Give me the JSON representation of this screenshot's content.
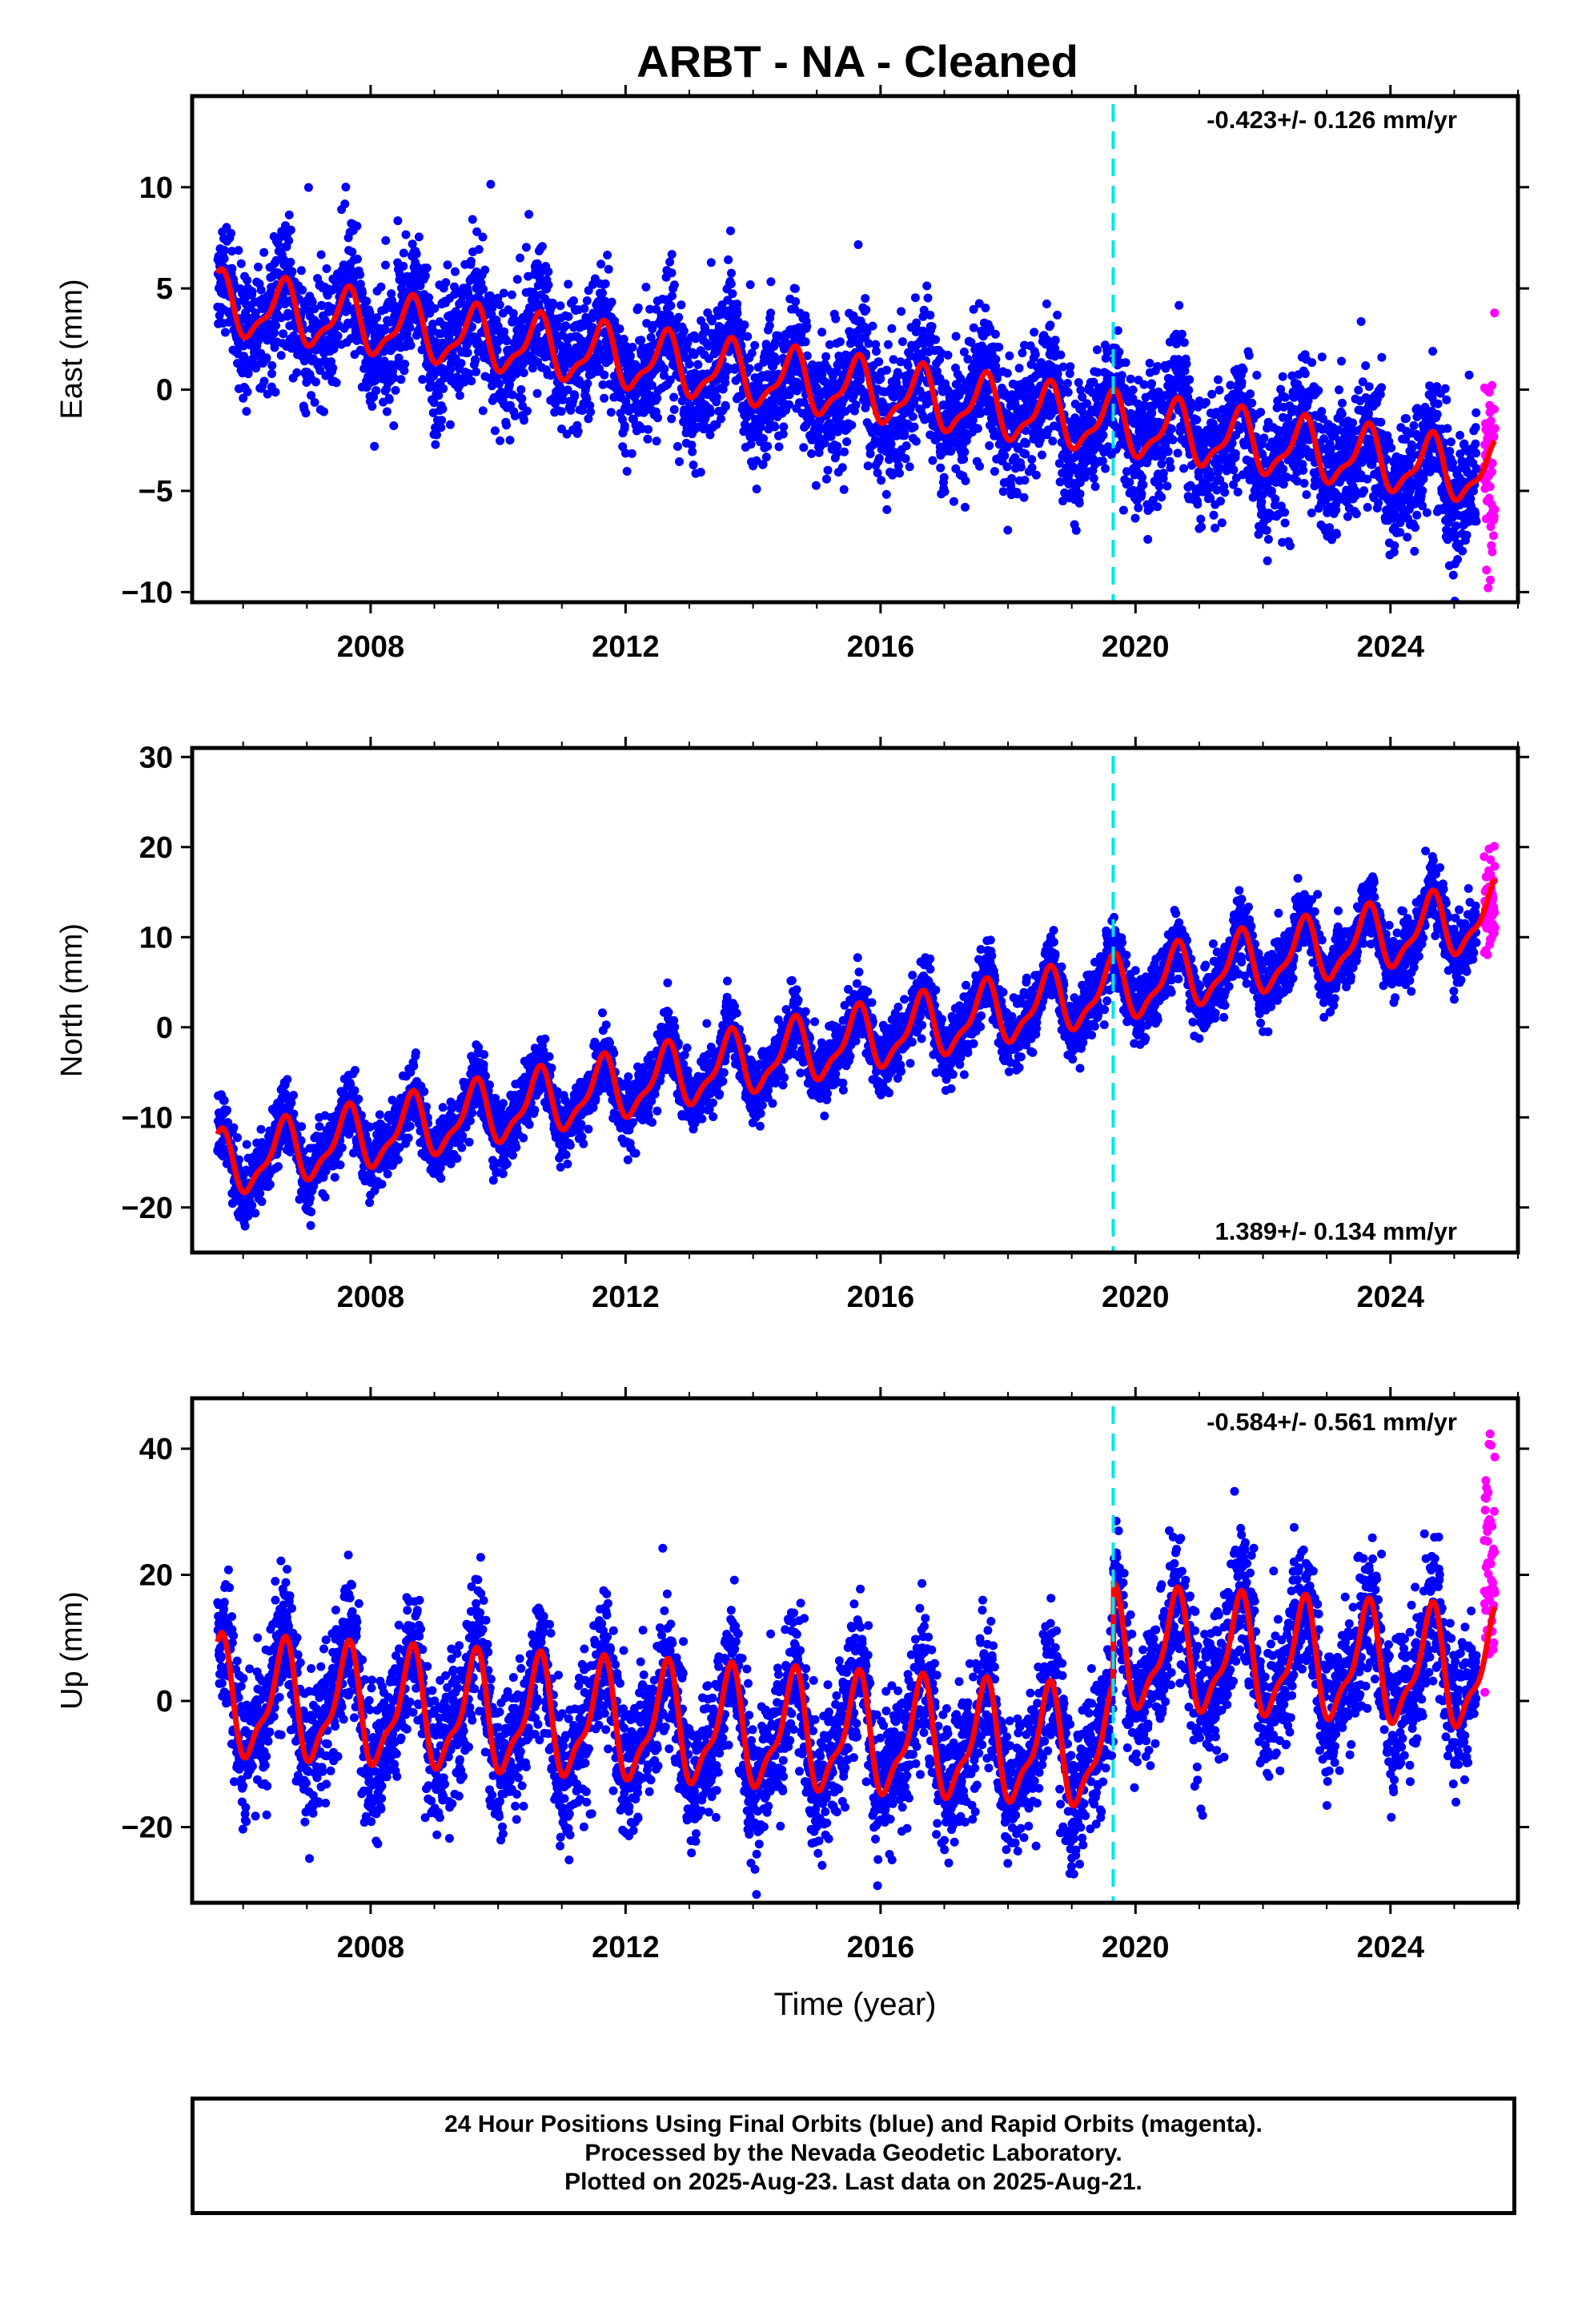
{
  "title": "ARBT  - NA - Cleaned",
  "colors": {
    "final_orbits": "#0000ff",
    "rapid_orbits": "#ff00ff",
    "model": "#ff0000",
    "equipment_change": "#00e5ee"
  },
  "footer": {
    "line1": "24 Hour Positions Using Final Orbits (blue) and Rapid Orbits (magenta).",
    "line2": "Processed by the Nevada Geodetic Laboratory.",
    "line3": "Plotted on 2025-Aug-23. Last data on 2025-Aug-21."
  },
  "chart_data": [
    {
      "type": "scatter",
      "ylabel": "East (mm)",
      "xlabel": "",
      "xlim": [
        2005.2,
        2026.0
      ],
      "ylim": [
        -10.5,
        14.5
      ],
      "xticks": [
        "2008",
        "2012",
        "2016",
        "2020",
        "2024"
      ],
      "yticks": [
        "-10",
        "-5",
        "0",
        "5",
        "10"
      ],
      "rate_label": "-0.423+/- 0.126 mm/yr",
      "rate_position": "top-right",
      "vertical_dashed_line_x": 2019.65,
      "data_start": 2005.6,
      "rapid_start": 2025.35,
      "data_end": 2025.64,
      "series": [
        {
          "name": "Final Orbits (blue)",
          "trend_start": 4.2,
          "trend_rate": -0.423,
          "seasonal_amplitude": 1.4,
          "noise": 1.6
        },
        {
          "name": "Rapid Orbits (magenta)",
          "trend_start": -3.0,
          "noise": 2.5
        }
      ],
      "model_curve": {
        "trend_start": 4.2,
        "trend_rate": -0.423,
        "seasonal_amplitude": 1.4,
        "offset_at_2019.65": 0
      }
    },
    {
      "type": "scatter",
      "ylabel": "North (mm)",
      "xlabel": "",
      "xlim": [
        2005.2,
        2026.0
      ],
      "ylim": [
        -25,
        31
      ],
      "xticks": [
        "2008",
        "2012",
        "2016",
        "2020",
        "2024"
      ],
      "yticks": [
        "-20",
        "-10",
        "0",
        "10",
        "20",
        "30"
      ],
      "rate_label": "1.389+/- 0.134 mm/yr",
      "rate_position": "bottom-right",
      "vertical_dashed_line_x": 2019.65,
      "data_start": 2005.6,
      "rapid_start": 2025.35,
      "data_end": 2025.64,
      "series": [
        {
          "name": "Final Orbits (blue)",
          "trend_start": -15.5,
          "trend_rate": 1.389,
          "seasonal_amplitude": 3.3,
          "noise": 1.8
        },
        {
          "name": "Rapid Orbits (magenta)",
          "trend_start": 14.0,
          "noise": 2.5
        }
      ],
      "model_curve": {
        "trend_start": -15.5,
        "trend_rate": 1.389,
        "seasonal_amplitude": 3.3,
        "offset_at_2019.65": 0
      }
    },
    {
      "type": "scatter",
      "ylabel": "Up (mm)",
      "xlabel": "Time (year)",
      "xlim": [
        2005.2,
        2026.0
      ],
      "ylim": [
        -32,
        48
      ],
      "xticks": [
        "2008",
        "2012",
        "2016",
        "2020",
        "2024"
      ],
      "yticks": [
        "-20",
        "0",
        "20",
        "40"
      ],
      "rate_label": "-0.584+/- 0.561 mm/yr",
      "rate_position": "top-right",
      "vertical_dashed_line_x": 2019.65,
      "data_start": 2005.6,
      "rapid_start": 2025.35,
      "data_end": 2025.64,
      "series": [
        {
          "name": "Final Orbits (blue)",
          "trend_start": 0.0,
          "trend_rate": -0.584,
          "seasonal_amplitude": 8.5,
          "noise": 5.5
        },
        {
          "name": "Rapid Orbits (magenta)",
          "trend_start": 20.0,
          "noise": 8.0
        }
      ],
      "model_curve": {
        "trend_start": 0.0,
        "trend_rate": -0.584,
        "seasonal_amplitude": 8.5,
        "offset_at_2019.65": 16
      }
    }
  ]
}
